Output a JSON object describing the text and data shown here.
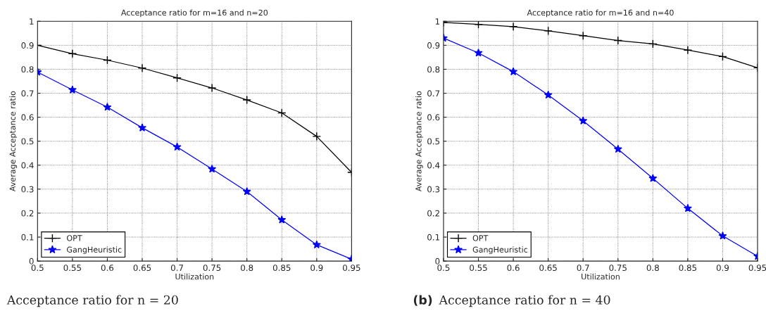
{
  "chart_data": [
    {
      "type": "line",
      "title": "Acceptance ratio for m=16 and n=20",
      "xlabel": "Utilization",
      "ylabel": "Average Acceptance ratio",
      "x": [
        0.5,
        0.55,
        0.6,
        0.65,
        0.7,
        0.75,
        0.8,
        0.85,
        0.9,
        0.95
      ],
      "series": [
        {
          "name": "OPT",
          "color": "#000000",
          "marker": "cross",
          "values": [
            0.9,
            0.865,
            0.838,
            0.805,
            0.764,
            0.722,
            0.672,
            0.618,
            0.52,
            0.37
          ]
        },
        {
          "name": "GangHeuristic",
          "color": "#0000ff",
          "marker": "star",
          "values": [
            0.788,
            0.714,
            0.642,
            0.556,
            0.476,
            0.384,
            0.29,
            0.172,
            0.068,
            0.008
          ]
        }
      ],
      "xlim": [
        0.5,
        0.95
      ],
      "xticks": [
        0.5,
        0.55,
        0.6,
        0.65,
        0.7,
        0.75,
        0.8,
        0.85,
        0.9,
        0.95
      ],
      "ylim": [
        0,
        1
      ],
      "yticks": [
        0,
        0.1,
        0.2,
        0.3,
        0.4,
        0.5,
        0.6,
        0.7,
        0.8,
        0.9,
        1
      ],
      "grid": true,
      "legend": "bottom left",
      "line_style": "solid",
      "annotations": [
        "Acceptance ratio for n = 20"
      ]
    },
    {
      "type": "line",
      "title": "Acceptance ratio for m=16 and n=40",
      "xlabel": "Utilization",
      "ylabel": "Average Acceptance ratio",
      "x": [
        0.5,
        0.55,
        0.6,
        0.65,
        0.7,
        0.75,
        0.8,
        0.85,
        0.9,
        0.95
      ],
      "series": [
        {
          "name": "OPT",
          "color": "#000000",
          "marker": "cross",
          "values": [
            0.995,
            0.987,
            0.978,
            0.96,
            0.94,
            0.92,
            0.906,
            0.88,
            0.853,
            0.806
          ]
        },
        {
          "name": "GangHeuristic",
          "color": "#0000ff",
          "marker": "star",
          "values": [
            0.93,
            0.868,
            0.79,
            0.693,
            0.585,
            0.467,
            0.345,
            0.22,
            0.105,
            0.02
          ]
        }
      ],
      "xlim": [
        0.5,
        0.95
      ],
      "xticks": [
        0.5,
        0.55,
        0.6,
        0.65,
        0.7,
        0.75,
        0.8,
        0.85,
        0.9,
        0.95
      ],
      "ylim": [
        0,
        1
      ],
      "yticks": [
        0,
        0.1,
        0.2,
        0.3,
        0.4,
        0.5,
        0.6,
        0.7,
        0.8,
        0.9,
        1
      ],
      "grid": true,
      "legend": "bottom left",
      "line_style": "solid",
      "annotations": [
        "(b)",
        "Acceptance ratio for n = 40"
      ]
    }
  ]
}
